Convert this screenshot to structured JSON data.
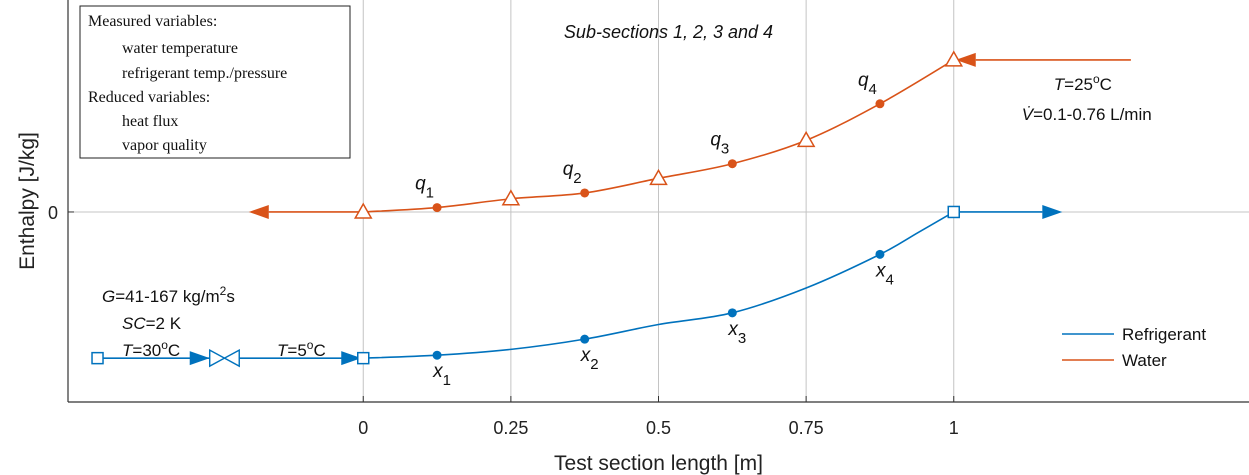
{
  "chart_data": {
    "type": "line",
    "xlabel": "Test section length [m]",
    "ylabel": "Enthalpy [J/kg]",
    "title": "Sub-sections 1, 2, 3 and 4",
    "xlim": [
      -0.5,
      1.5
    ],
    "ylim": [
      -1.3,
      1.45
    ],
    "xticks": [
      0,
      0.25,
      0.5,
      0.75,
      1
    ],
    "xtick_labels": [
      "0",
      "0.25",
      "0.5",
      "0.75",
      "1"
    ],
    "yticks": [
      0
    ],
    "ytick_labels": [
      "0"
    ],
    "grid": true,
    "series": [
      {
        "name": "Refrigerant",
        "color": "#0072BD",
        "x": [
          0,
          0.125,
          0.25,
          0.375,
          0.5,
          0.625,
          0.75,
          0.875,
          0.94,
          1
        ],
        "y": [
          -1.0,
          -0.98,
          -0.94,
          -0.87,
          -0.77,
          -0.69,
          -0.52,
          -0.29,
          -0.14,
          0.0
        ]
      },
      {
        "name": "Water",
        "color": "#D95319",
        "x": [
          0,
          0.125,
          0.25,
          0.375,
          0.5,
          0.625,
          0.75,
          0.875,
          1
        ],
        "y": [
          0.0,
          0.03,
          0.09,
          0.13,
          0.23,
          0.33,
          0.49,
          0.74,
          1.04
        ]
      }
    ],
    "water_temperature_points": {
      "x": [
        0,
        0.25,
        0.5,
        0.75,
        1
      ],
      "y": [
        0.0,
        0.09,
        0.23,
        0.49,
        1.04
      ]
    },
    "refrigerant_temp_pressure_points": {
      "x": [
        -0.45,
        0,
        1
      ],
      "y": [
        -1.0,
        -1.0,
        0.0
      ]
    },
    "heat_flux_points": {
      "labels": [
        "q1",
        "q2",
        "q3",
        "q4"
      ],
      "x": [
        0.125,
        0.375,
        0.625,
        0.875
      ],
      "y": [
        0.03,
        0.13,
        0.33,
        0.74
      ]
    },
    "vapor_quality_points": {
      "labels": [
        "x1",
        "x2",
        "x3",
        "x4"
      ],
      "x": [
        0.125,
        0.375,
        0.625,
        0.875
      ],
      "y": [
        -0.98,
        -0.87,
        -0.69,
        -0.29
      ]
    },
    "legend_measured": {
      "header": "Measured variables:",
      "items": [
        "water temperature",
        "refrigerant temp./pressure"
      ]
    },
    "legend_reduced": {
      "header": "Reduced variables:",
      "items": [
        "heat flux",
        "vapor quality"
      ]
    },
    "legend_lines": [
      "Refrigerant",
      "Water"
    ],
    "annotations": {
      "water_inlet_line1": "T=25°C",
      "water_inlet_line2": "V̇=0.1-0.76 L/min",
      "refrigerant_inlet_line1": "G=41-167 kg/m²s",
      "refrigerant_inlet_line2": "SC=2 K",
      "refrigerant_inlet_line3": "T=30°C",
      "after_valve": "T=5°C"
    }
  }
}
